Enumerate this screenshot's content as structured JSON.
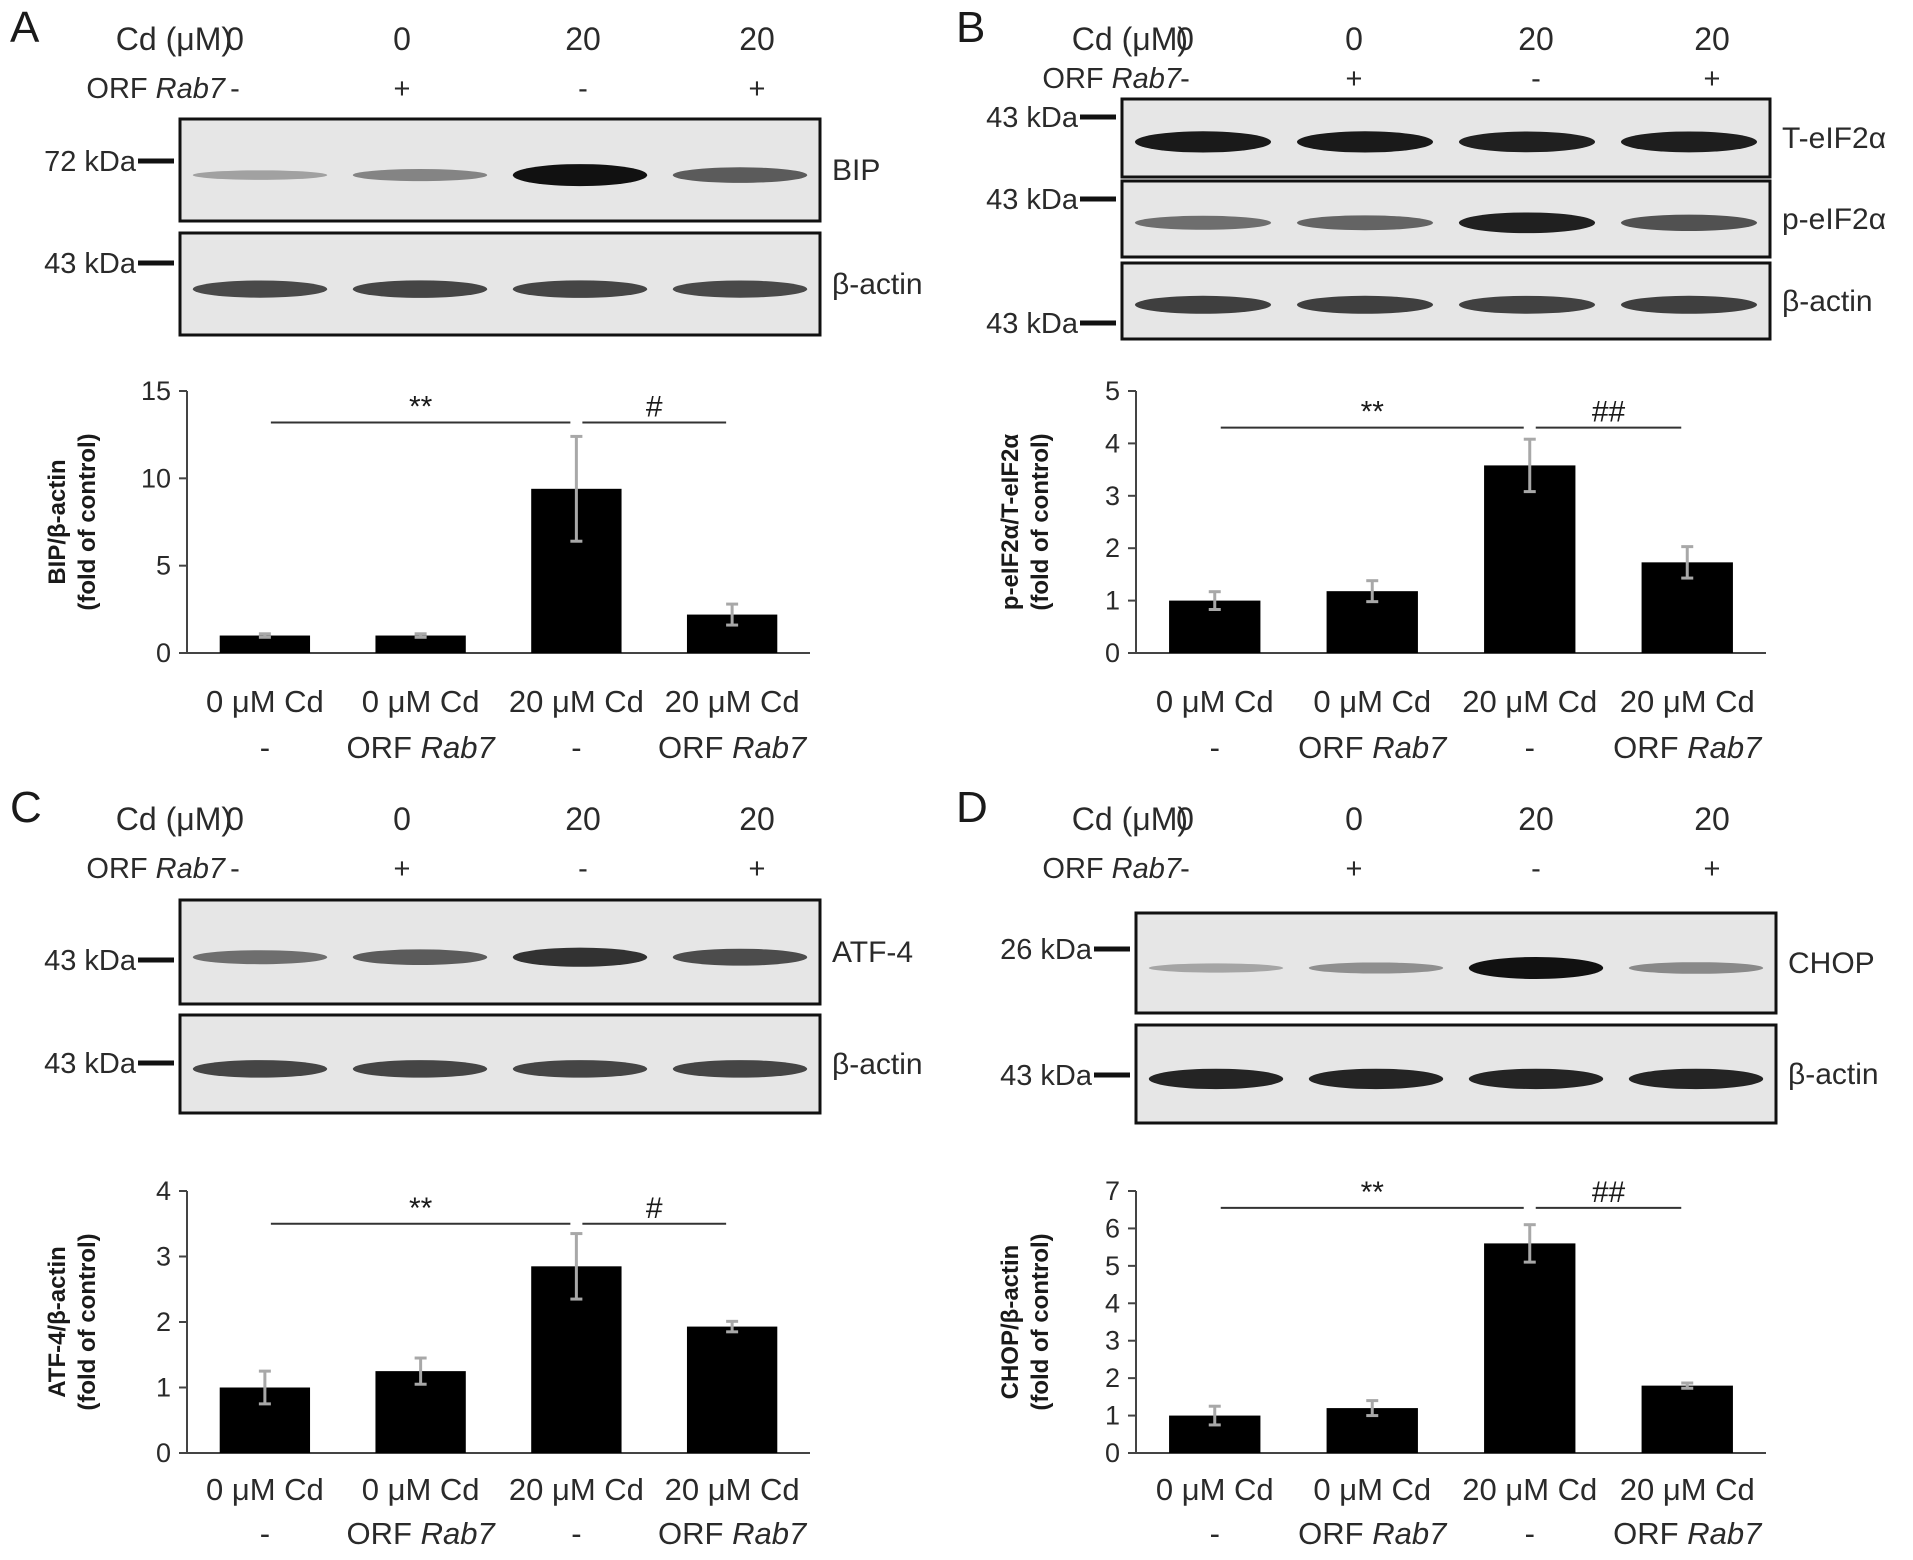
{
  "panels": [
    {
      "label": "A",
      "header": {
        "cd_label": "Cd (μM)",
        "cd_values": [
          "0",
          "0",
          "20",
          "20"
        ],
        "orf_prefix": "ORF ",
        "orf_gene": "Rab7",
        "orf_values": [
          "-",
          "+",
          "-",
          "+"
        ]
      },
      "blots": [
        {
          "name": "BIP",
          "marker": "72 kDa",
          "band_intensity": [
            0.22,
            0.38,
            1.0,
            0.6
          ]
        },
        {
          "name": "β-actin",
          "marker": "43 kDa",
          "band_intensity": [
            0.7,
            0.72,
            0.72,
            0.7
          ]
        }
      ]
    },
    {
      "label": "B",
      "header": {
        "cd_label": "Cd (μM)",
        "cd_values": [
          "0",
          "0",
          "20",
          "20"
        ],
        "orf_prefix": "ORF ",
        "orf_gene": "Rab7",
        "orf_values": [
          "-",
          "+",
          "-",
          "+"
        ]
      },
      "blots": [
        {
          "name": "T-eIF2α",
          "marker": "43 kDa",
          "band_intensity": [
            0.95,
            0.95,
            0.92,
            0.93
          ]
        },
        {
          "name": "p-eIF2α",
          "marker": "43 kDa",
          "band_intensity": [
            0.5,
            0.55,
            0.92,
            0.65
          ]
        },
        {
          "name": "β-actin",
          "marker": "43 kDa",
          "band_intensity": [
            0.75,
            0.75,
            0.74,
            0.75
          ]
        }
      ]
    },
    {
      "label": "C",
      "header": {
        "cd_label": "Cd (μM)",
        "cd_values": [
          "0",
          "0",
          "20",
          "20"
        ],
        "orf_prefix": "ORF ",
        "orf_gene": "Rab7",
        "orf_values": [
          "-",
          "+",
          "-",
          "+"
        ]
      },
      "blots": [
        {
          "name": "ATF-4",
          "marker": "43 kDa",
          "band_intensity": [
            0.5,
            0.6,
            0.82,
            0.68
          ]
        },
        {
          "name": "β-actin",
          "marker": "43 kDa",
          "band_intensity": [
            0.72,
            0.72,
            0.72,
            0.72
          ]
        }
      ]
    },
    {
      "label": "D",
      "header": {
        "cd_label": "Cd (μM)",
        "cd_values": [
          "0",
          "0",
          "20",
          "20"
        ],
        "orf_prefix": "ORF ",
        "orf_gene": "Rab7",
        "orf_values": [
          "-",
          "+",
          "-",
          "+"
        ]
      },
      "blots": [
        {
          "name": "CHOP",
          "marker": "26 kDa",
          "band_intensity": [
            0.2,
            0.32,
            1.0,
            0.35
          ]
        },
        {
          "name": "β-actin",
          "marker": "43 kDa",
          "band_intensity": [
            0.9,
            0.9,
            0.9,
            0.9
          ]
        }
      ]
    }
  ],
  "chart_data": [
    {
      "type": "bar",
      "panel": "A",
      "categories": [
        "0 μM Cd",
        "0 μM Cd",
        "20 μM Cd",
        "20 μM Cd"
      ],
      "category_sub": [
        {
          "pre": "-",
          "gene": ""
        },
        {
          "pre": "ORF ",
          "gene": "Rab7"
        },
        {
          "pre": "-",
          "gene": ""
        },
        {
          "pre": "ORF ",
          "gene": "Rab7"
        }
      ],
      "values": [
        1.0,
        1.0,
        9.4,
        2.2
      ],
      "errors": [
        0.1,
        0.1,
        3.0,
        0.6
      ],
      "ylabel_line1": "BIP/β-actin",
      "ylabel_line2": "(fold of control)",
      "ylim": [
        0,
        15
      ],
      "yticks": [
        0,
        5,
        10,
        15
      ],
      "significance": [
        {
          "from": 0,
          "to": 2,
          "label": "**"
        },
        {
          "from": 2,
          "to": 3,
          "label": "#"
        }
      ],
      "sig_level": 13.2
    },
    {
      "type": "bar",
      "panel": "B",
      "categories": [
        "0 μM Cd",
        "0 μM Cd",
        "20 μM Cd",
        "20 μM Cd"
      ],
      "category_sub": [
        {
          "pre": "-",
          "gene": ""
        },
        {
          "pre": "ORF ",
          "gene": "Rab7"
        },
        {
          "pre": "-",
          "gene": ""
        },
        {
          "pre": "ORF ",
          "gene": "Rab7"
        }
      ],
      "values": [
        1.0,
        1.18,
        3.58,
        1.73
      ],
      "errors": [
        0.17,
        0.2,
        0.5,
        0.3
      ],
      "ylabel_line1": "p-eIF2α/T-eIF2α",
      "ylabel_line2": "(fold of control)",
      "ylim": [
        0,
        5
      ],
      "yticks": [
        0,
        1,
        2,
        3,
        4,
        5
      ],
      "significance": [
        {
          "from": 0,
          "to": 2,
          "label": "**"
        },
        {
          "from": 2,
          "to": 3,
          "label": "##"
        }
      ],
      "sig_level": 4.3
    },
    {
      "type": "bar",
      "panel": "C",
      "categories": [
        "0 μM Cd",
        "0 μM Cd",
        "20 μM Cd",
        "20 μM Cd"
      ],
      "category_sub": [
        {
          "pre": "-",
          "gene": ""
        },
        {
          "pre": "ORF ",
          "gene": "Rab7"
        },
        {
          "pre": "-",
          "gene": ""
        },
        {
          "pre": "ORF ",
          "gene": "Rab7"
        }
      ],
      "values": [
        1.0,
        1.25,
        2.85,
        1.93
      ],
      "errors": [
        0.25,
        0.2,
        0.5,
        0.08
      ],
      "ylabel_line1": "ATF-4/β-actin",
      "ylabel_line2": "(fold of control)",
      "ylim": [
        0,
        4
      ],
      "yticks": [
        0,
        1,
        2,
        3,
        4
      ],
      "significance": [
        {
          "from": 0,
          "to": 2,
          "label": "**"
        },
        {
          "from": 2,
          "to": 3,
          "label": "#"
        }
      ],
      "sig_level": 3.5
    },
    {
      "type": "bar",
      "panel": "D",
      "categories": [
        "0 μM Cd",
        "0 μM Cd",
        "20 μM Cd",
        "20 μM Cd"
      ],
      "category_sub": [
        {
          "pre": "-",
          "gene": ""
        },
        {
          "pre": "ORF ",
          "gene": "Rab7"
        },
        {
          "pre": "-",
          "gene": ""
        },
        {
          "pre": "ORF ",
          "gene": "Rab7"
        }
      ],
      "values": [
        1.0,
        1.2,
        5.6,
        1.8
      ],
      "errors": [
        0.25,
        0.2,
        0.5,
        0.07
      ],
      "ylabel_line1": "CHOP/β-actin",
      "ylabel_line2": "(fold of control)",
      "ylim": [
        0,
        7
      ],
      "yticks": [
        0,
        1,
        2,
        3,
        4,
        5,
        6,
        7
      ],
      "significance": [
        {
          "from": 0,
          "to": 2,
          "label": "**"
        },
        {
          "from": 2,
          "to": 3,
          "label": "##"
        }
      ],
      "sig_level": 6.55
    }
  ]
}
